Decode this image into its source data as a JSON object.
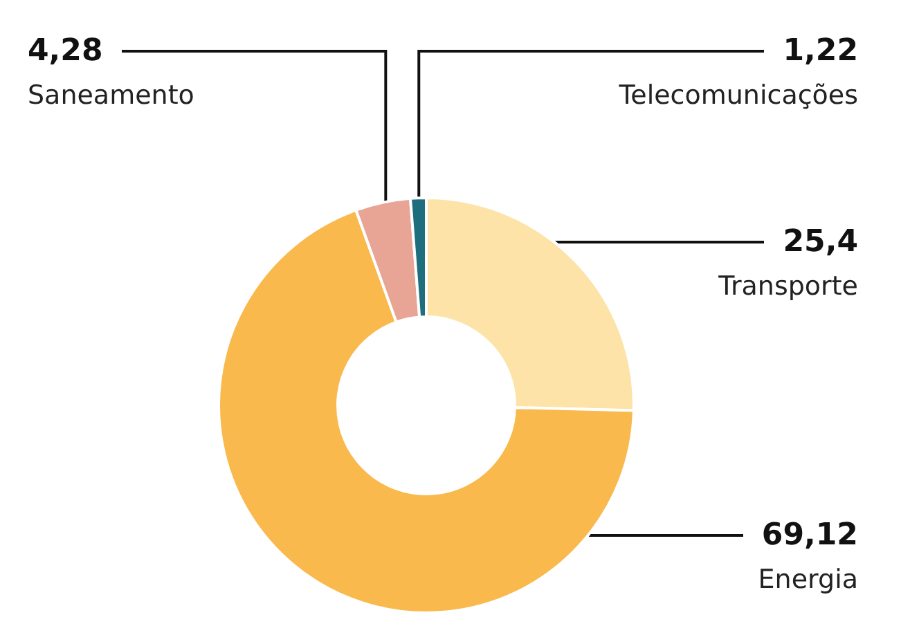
{
  "chart_data": {
    "type": "donut",
    "categories": [
      "Transporte",
      "Energia",
      "Saneamento",
      "Telecomunicações"
    ],
    "values": [
      25.4,
      69.12,
      4.28,
      1.22
    ],
    "colors": [
      "#fde3a7",
      "#f9b94c",
      "#e8a596",
      "#1e6e7e"
    ],
    "value_labels": [
      "25,4",
      "69,12",
      "4,28",
      "1,22"
    ],
    "legend": false
  }
}
